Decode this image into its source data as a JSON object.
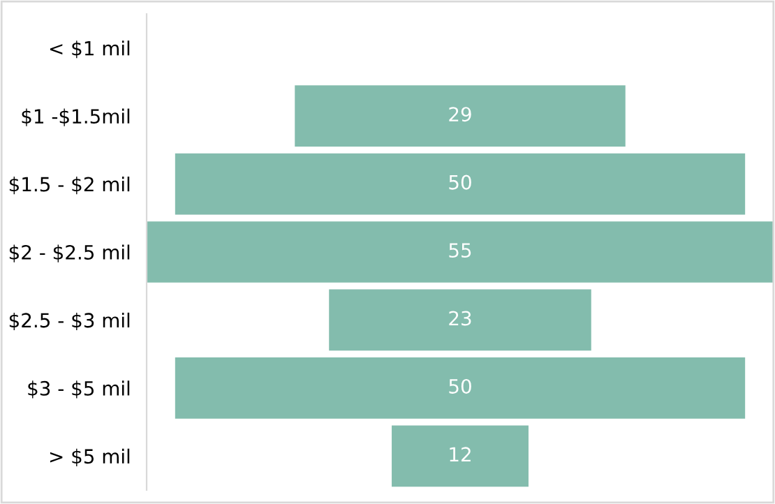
{
  "chart_data": {
    "type": "other",
    "categories": [
      "< $1 mil",
      "$1 -$1.5mil",
      "$1.5 - $2 mil",
      "$2 - $2.5 mil",
      "$2.5 - $3 mil",
      "$3 - $5 mil",
      "> $5 mil"
    ],
    "values": [
      null,
      29,
      50,
      55,
      23,
      50,
      12
    ],
    "color": "#83bcad",
    "data_labels": true
  }
}
